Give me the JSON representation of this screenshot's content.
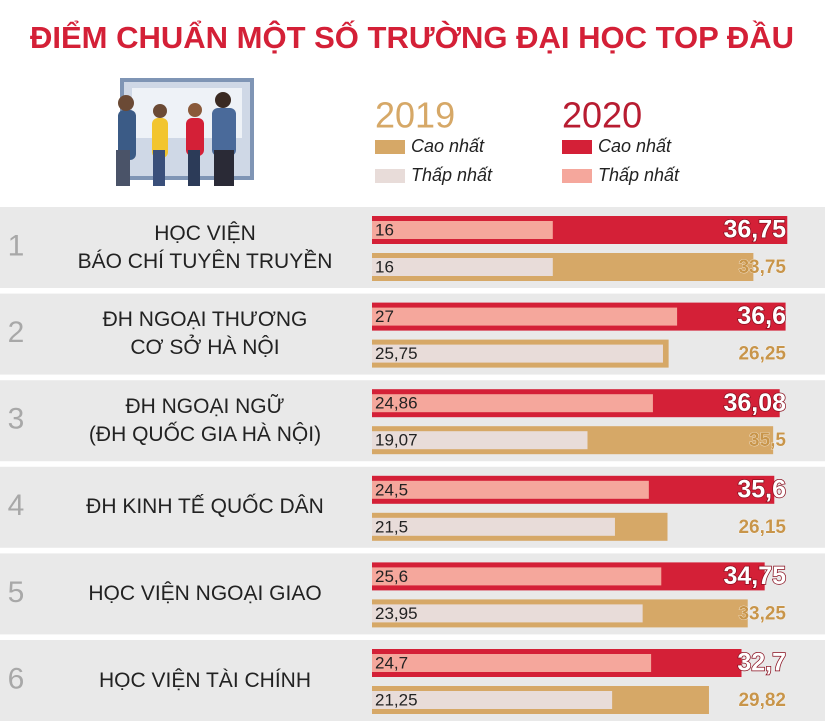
{
  "chart_data": {
    "type": "bar",
    "title": "ĐIỂM CHUẨN MỘT SỐ TRƯỜNG ĐẠI HỌC TOP ĐẦU",
    "ranks": [
      1,
      2,
      3,
      4,
      5,
      6
    ],
    "categories": [
      "HỌC VIỆN\nBÁO CHÍ TUYÊN TRUYỀN",
      "ĐH NGOẠI THƯƠNG\nCƠ SỞ HÀ NỘI",
      "ĐH NGOẠI NGỮ\n(ĐH QUỐC GIA HÀ NỘI)",
      "ĐH KINH TẾ QUỐC DÂN",
      "HỌC VIỆN NGOẠI GIAO",
      "HỌC VIỆN TÀI CHÍNH"
    ],
    "series": [
      {
        "year": "2020",
        "name": "Cao nhất",
        "color": "#d42037",
        "values": [
          36.75,
          36.6,
          36.08,
          35.6,
          34.75,
          32.7
        ],
        "value_labels": [
          "36,75",
          "36,6",
          "36,08",
          "35,6",
          "34,75",
          "32,7"
        ]
      },
      {
        "year": "2020",
        "name": "Thấp nhất",
        "color": "#f5a79c",
        "values": [
          16,
          27,
          24.86,
          24.5,
          25.6,
          24.7
        ],
        "value_labels": [
          "16",
          "27",
          "24,86",
          "24,5",
          "25,6",
          "24,7"
        ]
      },
      {
        "year": "2019",
        "name": "Cao nhất",
        "color": "#d6a867",
        "values": [
          33.75,
          26.25,
          35.5,
          26.15,
          33.25,
          29.82
        ],
        "value_labels": [
          "33,75",
          "26,25",
          "35,5",
          "26,15",
          "33,25",
          "29,82"
        ]
      },
      {
        "year": "2019",
        "name": "Thấp nhất",
        "color": "#e8dcd9",
        "values": [
          16,
          25.75,
          19.07,
          21.5,
          23.95,
          21.25
        ],
        "value_labels": [
          "16",
          "25,75",
          "19,07",
          "21,5",
          "23,95",
          "21,25"
        ]
      }
    ]
  }
}
